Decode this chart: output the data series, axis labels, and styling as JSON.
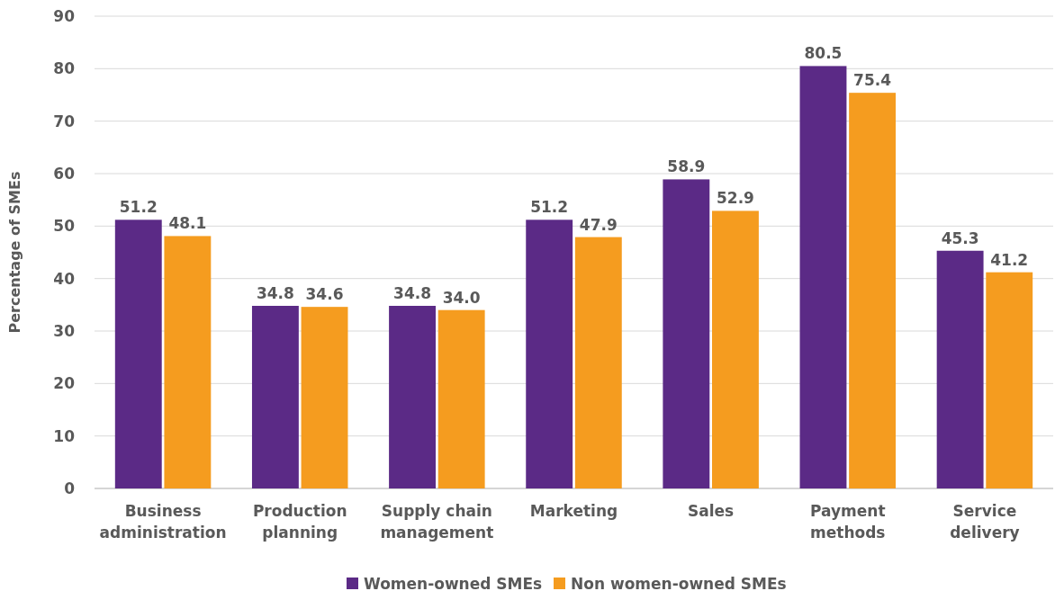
{
  "chart_data": {
    "type": "bar",
    "ylabel": "Percentage of SMEs",
    "categories": [
      "Business administration",
      "Production planning",
      "Supply chain management",
      "Marketing",
      "Sales",
      "Payment methods",
      "Service delivery"
    ],
    "series": [
      {
        "name": "Women-owned SMEs",
        "color": "#5b2a86",
        "values": [
          51.2,
          34.8,
          34.8,
          51.2,
          58.9,
          80.5,
          45.3
        ],
        "value_labels": [
          "51.2",
          "34.8",
          "34.8",
          "51.2",
          "58.9",
          "80.5",
          "45.3"
        ]
      },
      {
        "name": "Non women-owned SMEs",
        "color": "#f59c1f",
        "values": [
          48.1,
          34.6,
          34.0,
          47.9,
          52.9,
          75.4,
          41.2
        ],
        "value_labels": [
          "48.1",
          "34.6",
          "34.0",
          "47.9",
          "52.9",
          "75.4",
          "41.2"
        ]
      }
    ],
    "ylim": [
      0,
      90
    ],
    "yticks": [
      0,
      10,
      20,
      30,
      40,
      50,
      60,
      70,
      80,
      90
    ],
    "grid": "y",
    "legend": "bottom"
  }
}
